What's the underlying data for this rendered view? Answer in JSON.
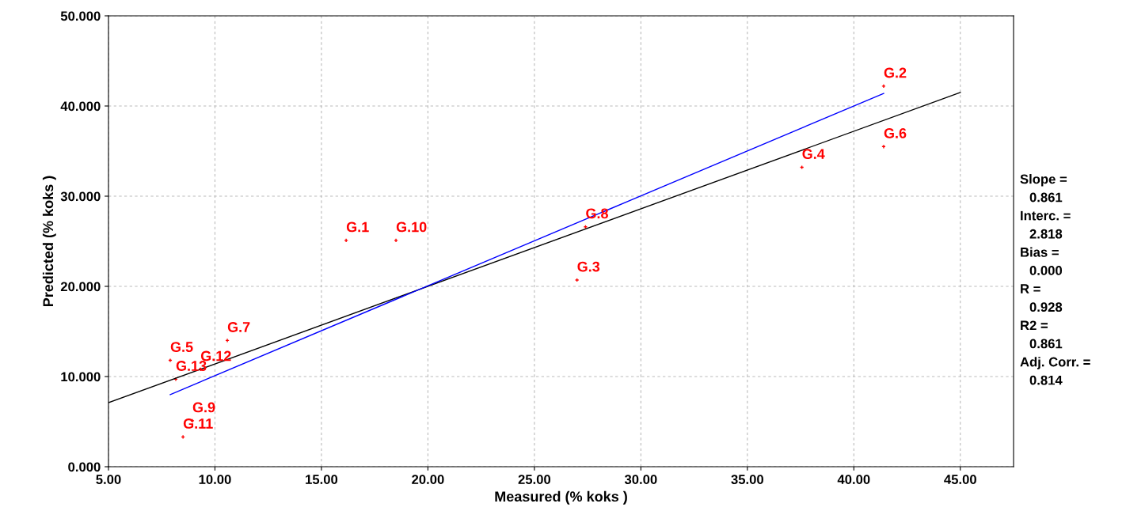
{
  "chart_data": {
    "type": "scatter",
    "xlabel": "Measured (% koks )",
    "ylabel": "Predicted (% koks )",
    "xlim": [
      5,
      47.5
    ],
    "ylim": [
      0,
      50
    ],
    "xticks": [
      {
        "value": 5,
        "label": "5.00"
      },
      {
        "value": 10,
        "label": "10.00"
      },
      {
        "value": 15,
        "label": "15.00"
      },
      {
        "value": 20,
        "label": "20.00"
      },
      {
        "value": 25,
        "label": "25.00"
      },
      {
        "value": 30,
        "label": "30.00"
      },
      {
        "value": 35,
        "label": "35.00"
      },
      {
        "value": 40,
        "label": "40.00"
      },
      {
        "value": 45,
        "label": "45.00"
      }
    ],
    "yticks": [
      {
        "value": 0,
        "label": "0.000"
      },
      {
        "value": 10,
        "label": "10.000"
      },
      {
        "value": 20,
        "label": "20.000"
      },
      {
        "value": 30,
        "label": "30.000"
      },
      {
        "value": 40,
        "label": "40.000"
      },
      {
        "value": 50,
        "label": "50.000"
      }
    ],
    "grid": true,
    "series": [
      {
        "marker": "cross",
        "color": "#ff0000",
        "x": [
          16.16,
          41.4,
          27.0,
          37.56,
          7.9,
          41.4,
          10.58,
          27.4,
          8.94,
          18.5,
          8.5,
          9.32,
          8.16
        ],
        "values": [
          25.1,
          42.2,
          20.7,
          33.2,
          11.8,
          35.5,
          14.0,
          26.6,
          5.1,
          25.1,
          3.3,
          10.8,
          9.7
        ],
        "value_labels": [
          "G.1",
          "G.2",
          "G.3",
          "G.4",
          "G.5",
          "G.6",
          "G.7",
          "G.8",
          "G.9",
          "G.10",
          "G.11",
          "G.12",
          "G.13"
        ]
      },
      {
        "type": "line",
        "color": "#000000",
        "x": [
          5,
          45
        ],
        "values": [
          7.1,
          41.5
        ]
      },
      {
        "type": "line",
        "color": "#0000ff",
        "x": [
          7.9,
          41.4
        ],
        "values": [
          8.0,
          41.4
        ]
      }
    ],
    "annotations": [
      "Slope =",
      "0.861",
      "Interc. =",
      "2.818",
      "Bias =",
      "0.000",
      "R =",
      "0.928",
      "R2 =",
      "0.861",
      "Adj. Corr. =",
      "0.814"
    ]
  }
}
